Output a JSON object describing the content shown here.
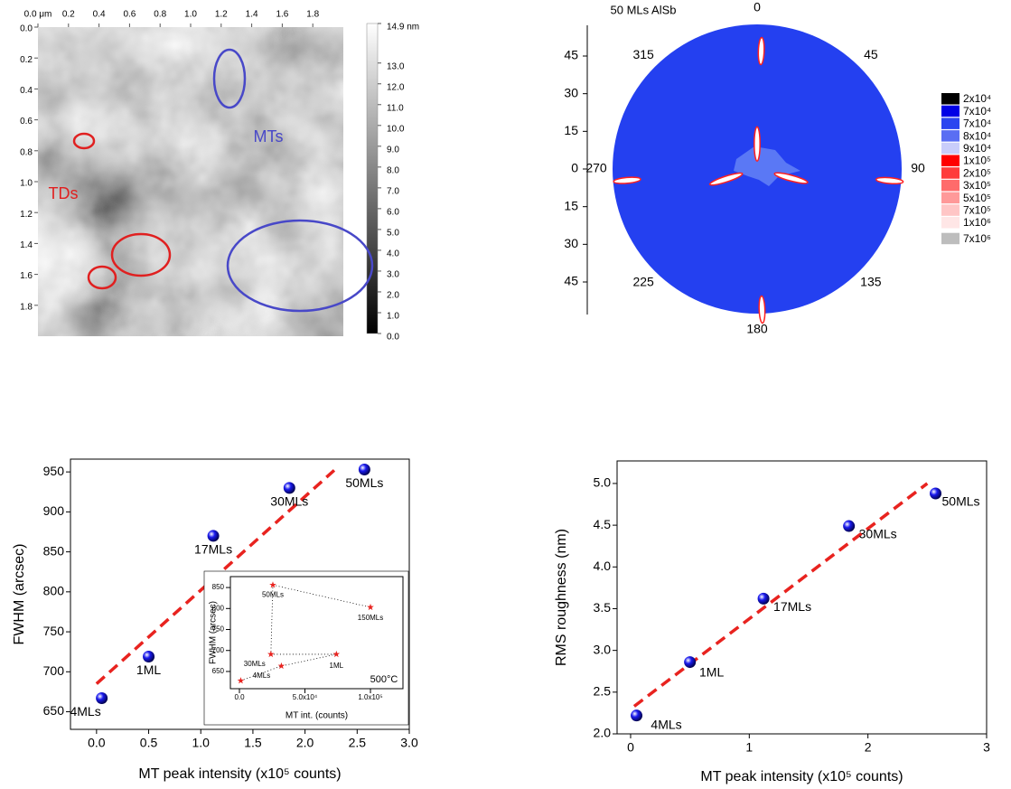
{
  "chart_data": [
    {
      "type": "image",
      "xlim": [
        0,
        2
      ],
      "ylim": [
        0,
        2
      ],
      "xticks": [
        {
          "value": 0,
          "label": "0.0 μm"
        },
        0.2,
        0.4,
        0.6,
        0.8,
        {
          "value": 1,
          "label": "1.0"
        },
        1.2,
        1.4,
        1.6,
        1.8
      ],
      "yticks": [
        {
          "value": 0,
          "label": "0.0"
        },
        0.2,
        0.4,
        0.6,
        0.8,
        {
          "value": 1,
          "label": "1.0"
        },
        1.2,
        1.4,
        1.6,
        1.8
      ],
      "clim": [
        0,
        14.9
      ],
      "cticks": [
        {
          "value": 14.9,
          "label": "14.9 nm"
        },
        {
          "value": 13,
          "label": "13.0"
        },
        {
          "value": 12,
          "label": "12.0"
        },
        {
          "value": 11,
          "label": "11.0"
        },
        {
          "value": 10,
          "label": "10.0"
        },
        {
          "value": 9,
          "label": "9.0"
        },
        {
          "value": 8,
          "label": "8.0"
        },
        {
          "value": 7,
          "label": "7.0"
        },
        {
          "value": 6,
          "label": "6.0"
        },
        {
          "value": 5,
          "label": "5.0"
        },
        {
          "value": 4,
          "label": "4.0"
        },
        {
          "value": 3,
          "label": "3.0"
        },
        {
          "value": 2,
          "label": "2.0"
        },
        {
          "value": 1,
          "label": "1.0"
        },
        {
          "value": 0,
          "label": "0.0"
        }
      ],
      "annotations": [
        {
          "text": "TDs",
          "color": "#e02020"
        },
        {
          "text": "MTs",
          "color": "#4848c8"
        }
      ]
    },
    {
      "type": "polar",
      "title": "50 MLs AlSb",
      "fill": "#2440f0",
      "rlim": [
        0,
        57.6
      ],
      "rticks": [
        0,
        15,
        30,
        45
      ],
      "thetaticks": [
        0,
        45,
        90,
        135,
        180,
        225,
        270,
        315
      ],
      "peaks": {
        "theta": [
          2,
          95,
          178,
          265,
          0,
          105,
          252
        ],
        "r": [
          47,
          53,
          56,
          52,
          10,
          14,
          13
        ],
        "color": "#ff2020"
      },
      "levels": [
        {
          "value": 20000,
          "label": "2x10⁴",
          "color": "#000000"
        },
        {
          "value": 70000,
          "label": "7x10⁴",
          "color": "#0000e6"
        },
        {
          "value": 70000,
          "label": "7x10⁴",
          "color": "#2b45f0"
        },
        {
          "value": 80000,
          "label": "8x10⁴",
          "color": "#5a6ef3"
        },
        {
          "value": 90000,
          "label": "9x10⁴",
          "color": "#c9cdfa"
        },
        {
          "value": 100000,
          "label": "1x10⁵",
          "color": "#ff0000"
        },
        {
          "value": 200000,
          "label": "2x10⁵",
          "color": "#ff3b3b"
        },
        {
          "value": 300000,
          "label": "3x10⁵",
          "color": "#ff6b6b"
        },
        {
          "value": 500000,
          "label": "5x10⁵",
          "color": "#ff9999"
        },
        {
          "value": 700000,
          "label": "7x10⁵",
          "color": "#ffc6c6"
        },
        {
          "value": 1000000,
          "label": "1x10⁶",
          "color": "#ffe6e6"
        },
        {
          "value": 7000000,
          "label": "7x10⁶",
          "color": "#bdbdbd"
        }
      ]
    },
    {
      "type": "scatter",
      "xlabel": "MT peak intensity (x10⁵ counts)",
      "ylabel": "FWHM (arcsec)",
      "xlim": [
        -0.25,
        3.0
      ],
      "ylim": [
        628,
        966
      ],
      "xticks": [
        {
          "value": 0,
          "label": "0.0"
        },
        0.5,
        {
          "value": 1,
          "label": "1.0"
        },
        1.5,
        {
          "value": 2,
          "label": "2.0"
        },
        2.5,
        {
          "value": 3,
          "label": "3.0"
        }
      ],
      "yticks": [
        650,
        700,
        750,
        800,
        850,
        900,
        950
      ],
      "marker": "sphere",
      "points": {
        "x": [
          0.05,
          0.5,
          1.12,
          1.85,
          2.57
        ],
        "y": [
          667,
          719,
          870,
          930,
          953
        ],
        "labels": [
          "4MLs",
          "1ML",
          "17MLs",
          "30MLs",
          "50MLs"
        ],
        "color": "#1a1aee"
      },
      "fit": {
        "x": [
          0,
          2.28
        ],
        "y": [
          685,
          952
        ],
        "color": "#e8231f"
      },
      "inset": {
        "xlabel": "MT int. (counts)",
        "ylabel": "FWHM (arcsec)",
        "xlim": [
          -6900,
          124800
        ],
        "ylim": [
          609,
          876
        ],
        "xticks": [
          {
            "value": 0,
            "label": "0.0"
          },
          {
            "value": 50000,
            "label": "5.0x10⁴"
          },
          {
            "value": 100000,
            "label": "1.0x10⁵"
          }
        ],
        "yticks": [
          650,
          700,
          750,
          800,
          850
        ],
        "annotation": "500°C",
        "marker": "star",
        "line": "dotted",
        "points": {
          "x": [
            1000,
            32000,
            74000,
            24000,
            25500,
            100000
          ],
          "y": [
            628,
            663,
            691,
            691,
            856,
            803
          ],
          "labels": [
            null,
            "4MLs",
            "1ML",
            "30MLs",
            "50MLs",
            "150MLs"
          ],
          "color": "#e8231f"
        }
      }
    },
    {
      "type": "scatter",
      "xlabel": "MT peak intensity (x10⁵ counts)",
      "ylabel": "RMS roughness (nm)",
      "xlim": [
        -0.114,
        3
      ],
      "ylim": [
        2,
        5.27
      ],
      "xticks": [
        0,
        1,
        2,
        3
      ],
      "yticks": [
        {
          "value": 2,
          "label": "2.0"
        },
        2.5,
        {
          "value": 3,
          "label": "3.0"
        },
        3.5,
        {
          "value": 4,
          "label": "4.0"
        },
        4.5,
        {
          "value": 5,
          "label": "5.0"
        }
      ],
      "marker": "sphere",
      "points": {
        "x": [
          0.05,
          0.5,
          1.12,
          1.84,
          2.57
        ],
        "y": [
          2.22,
          2.86,
          3.62,
          4.49,
          4.88
        ],
        "labels": [
          "4MLs",
          "1ML",
          "17MLs",
          "30MLs",
          "50MLs"
        ],
        "color": "#1a1aee"
      },
      "fit": {
        "x": [
          0.03,
          2.5
        ],
        "y": [
          2.33,
          5.0
        ],
        "color": "#e8231f"
      }
    }
  ]
}
